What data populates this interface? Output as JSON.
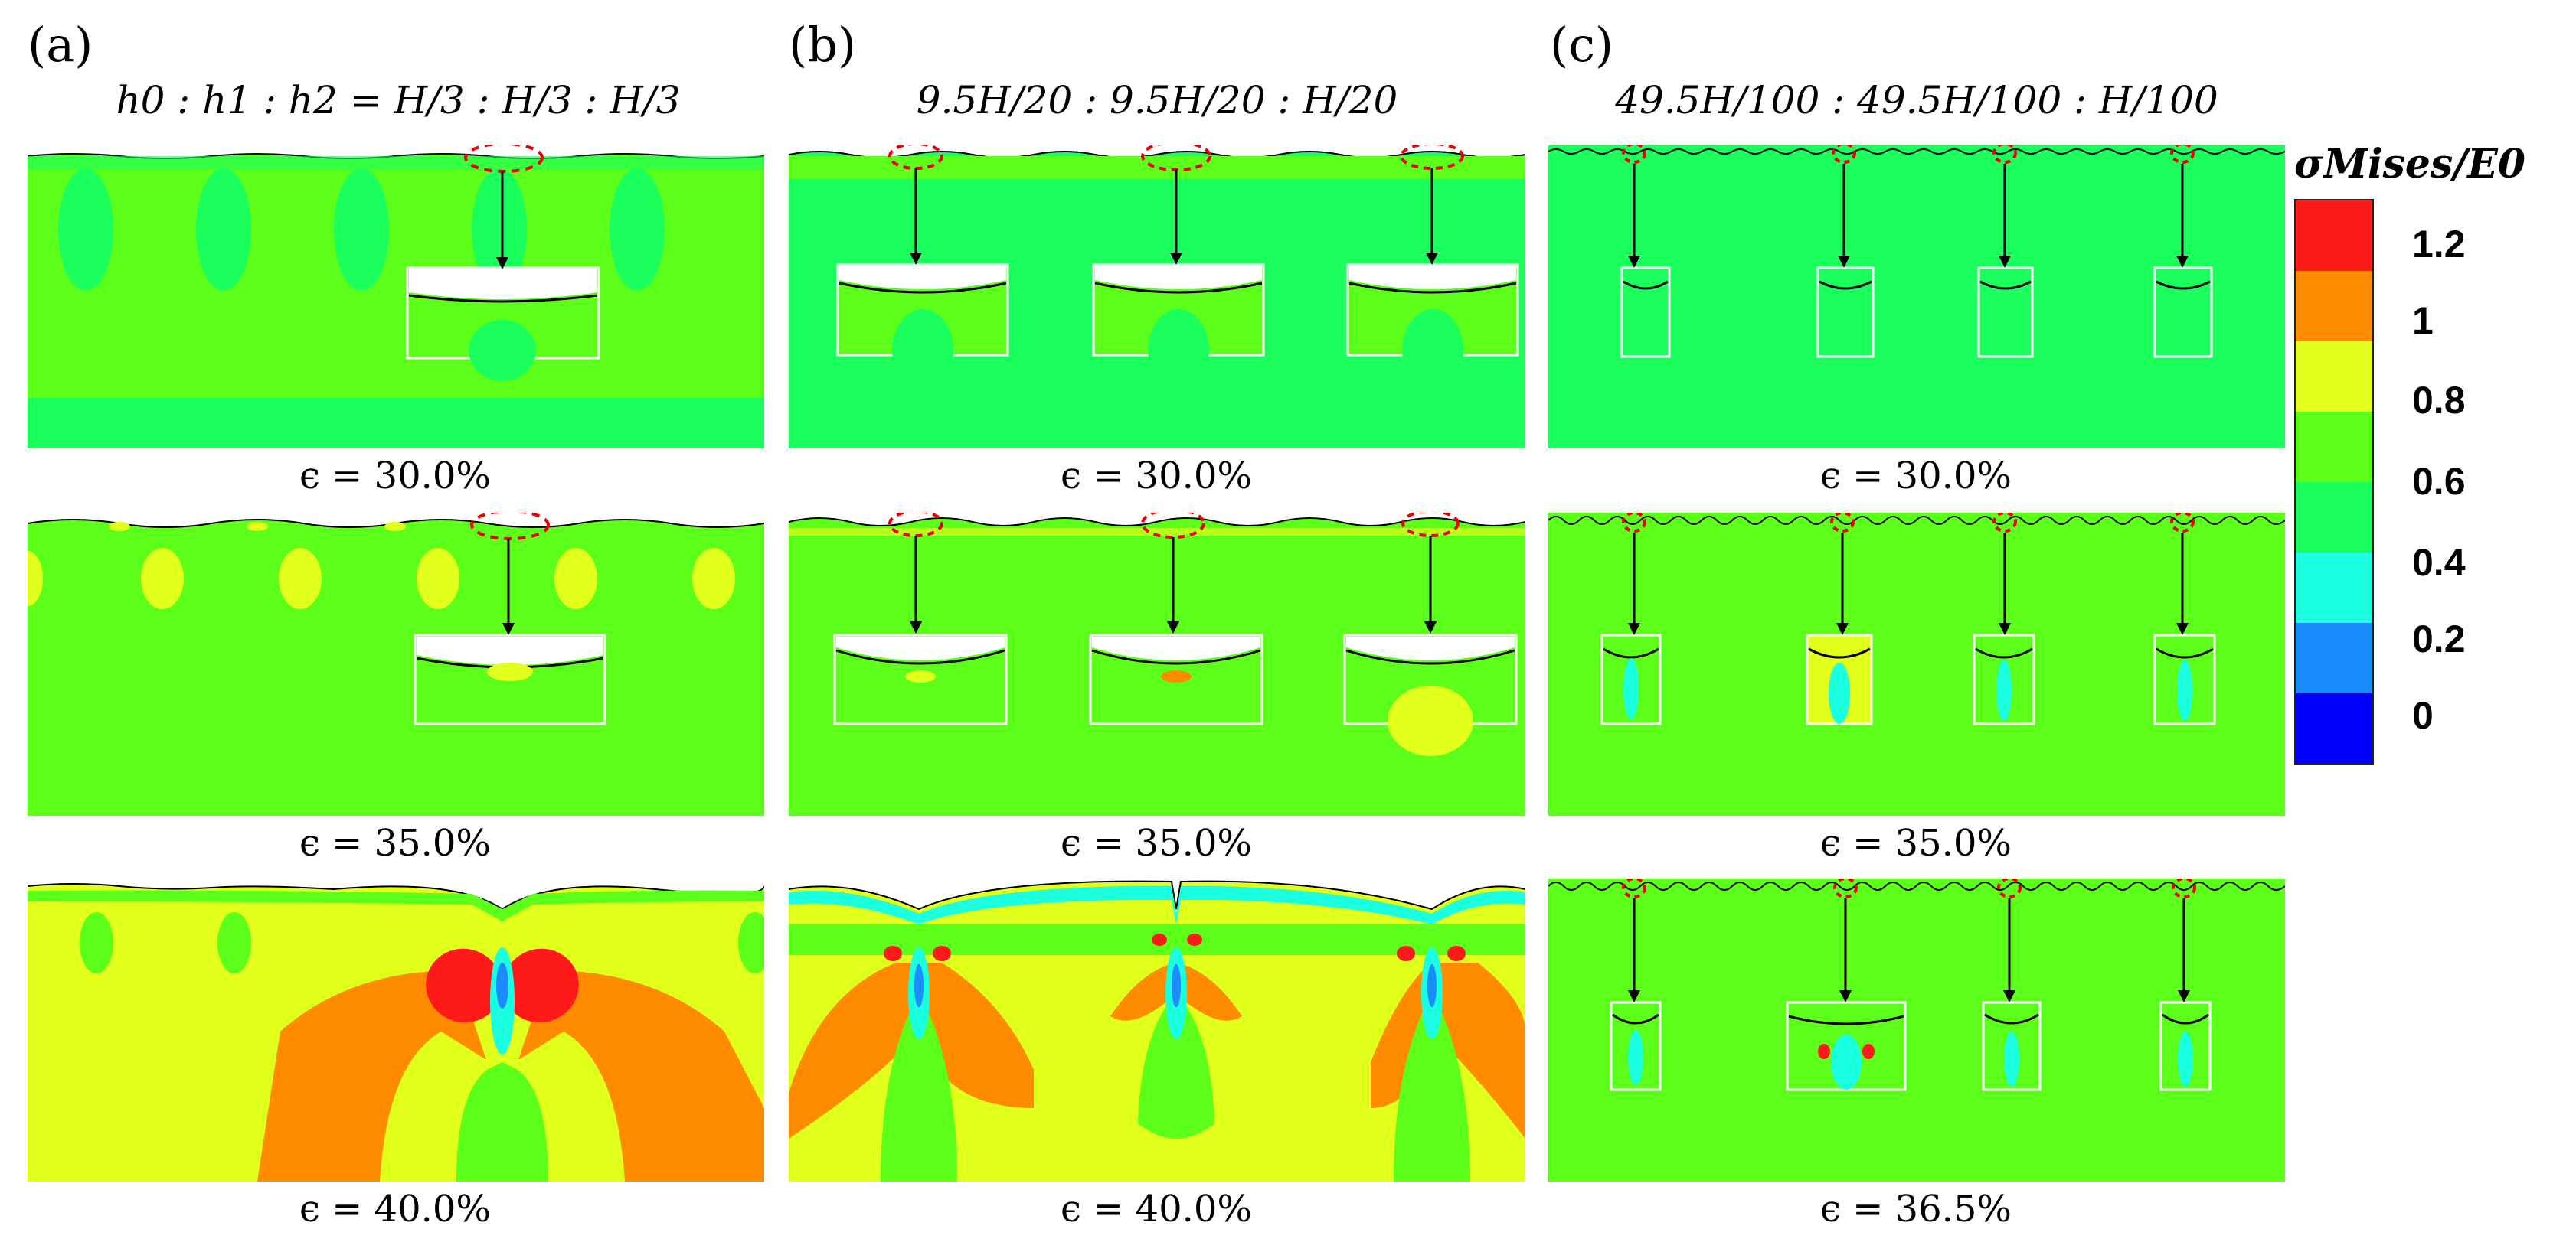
{
  "columns": [
    {
      "label": "(a)",
      "title": "h0 : h1 : h2 = H/3 : H/3 : H/3"
    },
    {
      "label": "(b)",
      "title": "9.5H/20 : 9.5H/20 : H/20"
    },
    {
      "label": "(c)",
      "title": "49.5H/100 : 49.5H/100 : H/100"
    }
  ],
  "strains": {
    "a": [
      "ϵ = 30.0%",
      "ϵ = 35.0%",
      "ϵ = 40.0%"
    ],
    "b": [
      "ϵ = 30.0%",
      "ϵ = 35.0%",
      "ϵ = 40.0%"
    ],
    "c": [
      "ϵ = 30.0%",
      "ϵ = 35.0%",
      "ϵ = 36.5%"
    ]
  },
  "colorbar": {
    "title": "σMises/E0",
    "ticks": [
      "1.2",
      "1",
      "0.8",
      "0.6",
      "0.4",
      "0.2",
      "0"
    ],
    "colors": [
      "#ff1a1a",
      "#ff8c00",
      "#e0ff1a",
      "#5cff1a",
      "#1aff5c",
      "#1affe0",
      "#1a8cff",
      "#0000ff"
    ]
  }
}
